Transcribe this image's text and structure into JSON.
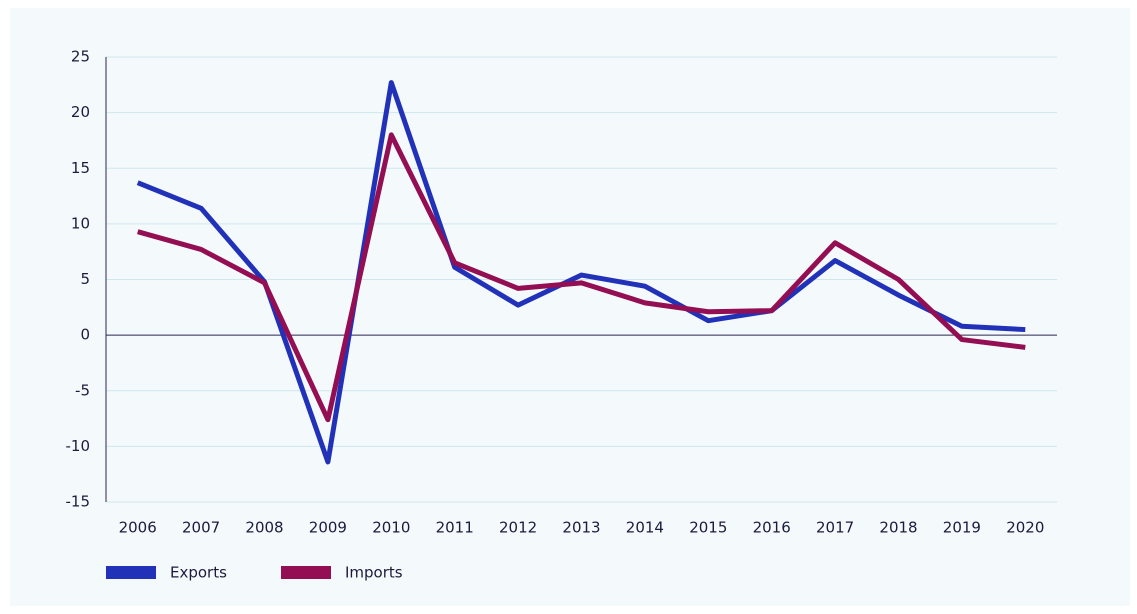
{
  "chart_data": {
    "type": "line",
    "categories": [
      "2006",
      "2007",
      "2008",
      "2009",
      "2010",
      "2011",
      "2012",
      "2013",
      "2014",
      "2015",
      "2016",
      "2017",
      "2018",
      "2019",
      "2020"
    ],
    "series": [
      {
        "name": "Exports",
        "color": "#2232b8",
        "values": [
          13.7,
          11.4,
          4.8,
          -11.4,
          22.7,
          6.1,
          2.7,
          5.4,
          4.4,
          1.3,
          2.2,
          6.7,
          3.6,
          0.8,
          0.5
        ]
      },
      {
        "name": "Imports",
        "color": "#930e52",
        "values": [
          9.3,
          7.7,
          4.7,
          -7.6,
          18.0,
          6.5,
          4.2,
          4.7,
          2.9,
          2.1,
          2.2,
          8.3,
          5.0,
          -0.4,
          -1.1
        ]
      }
    ],
    "ylim": [
      -15,
      25
    ],
    "yticks": [
      -15,
      -10,
      -5,
      0,
      5,
      10,
      15,
      20,
      25
    ],
    "grid": true,
    "legend": "bottom-left"
  }
}
